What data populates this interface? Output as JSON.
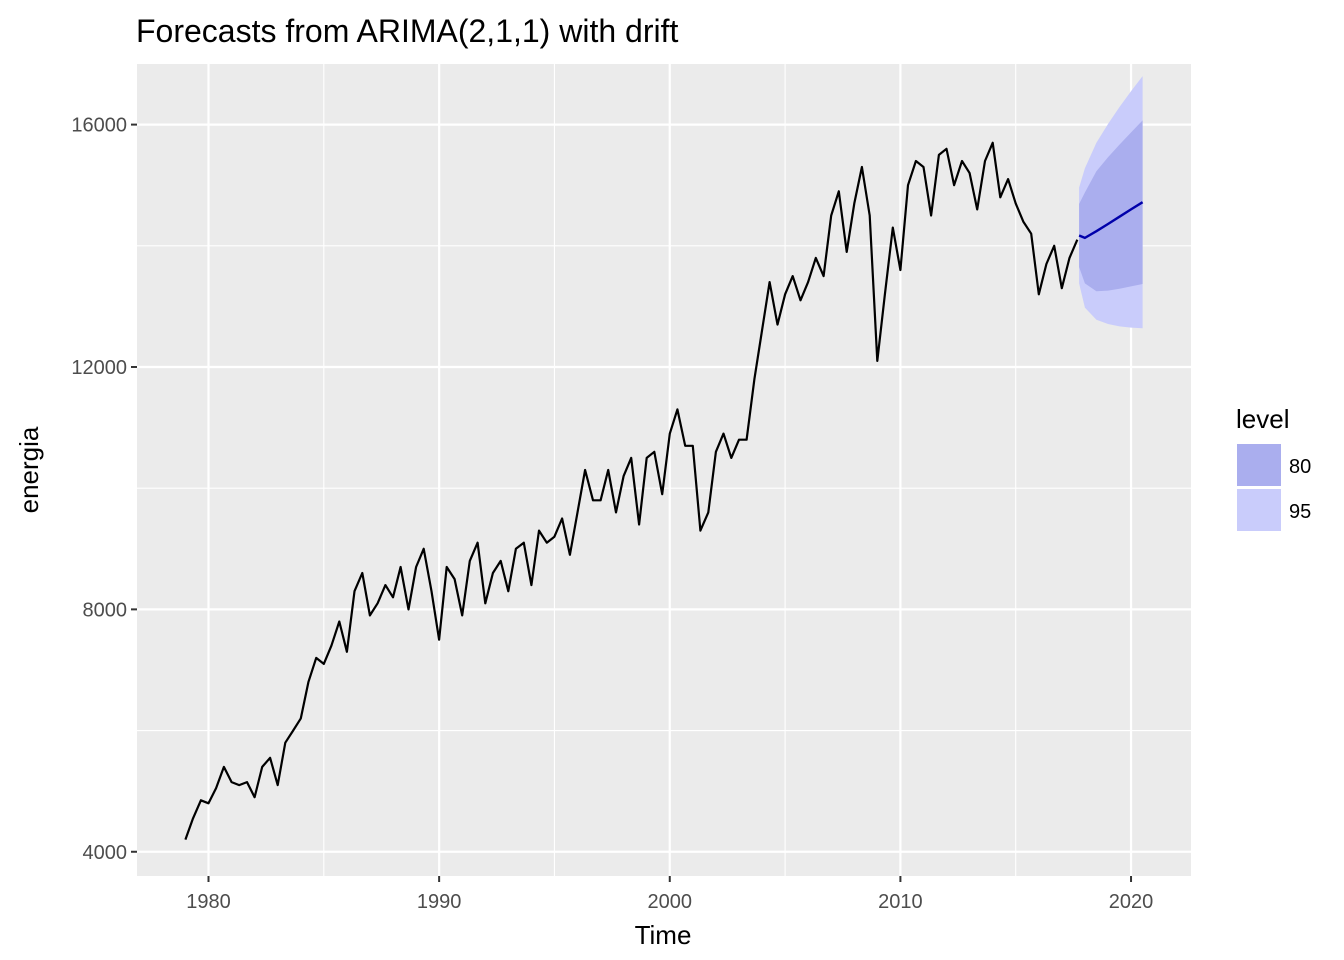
{
  "chart_data": {
    "type": "line",
    "title": "Forecasts from ARIMA(2,1,1) with drift",
    "xlabel": "Time",
    "ylabel": "energia",
    "xlim": [
      1976.9,
      2022.6
    ],
    "ylim": [
      3600,
      17000
    ],
    "x_ticks": [
      1980,
      1990,
      2000,
      2010,
      2020
    ],
    "y_ticks": [
      4000,
      8000,
      12000,
      16000
    ],
    "grid": true,
    "legend": {
      "title": "level",
      "position": "right",
      "entries": [
        {
          "label": "80",
          "color": "#aaaeee"
        },
        {
          "label": "95",
          "color": "#c9ccfb"
        }
      ]
    },
    "colors": {
      "panel": "#ebebeb",
      "grid": "#ffffff",
      "history": "#000000",
      "forecast": "#0000aa",
      "band80": "#aaaeee",
      "band95": "#c9ccfb"
    },
    "series": [
      {
        "x": [
          1979.0,
          1979.33,
          1979.67,
          1980.0,
          1980.33,
          1980.67,
          1981.0,
          1981.33,
          1981.67,
          1982.0,
          1982.33,
          1982.67,
          1983.0,
          1983.33,
          1983.67,
          1984.0,
          1984.33,
          1984.67,
          1985.0,
          1985.33,
          1985.67,
          1986.0,
          1986.33,
          1986.67,
          1987.0,
          1987.33,
          1987.67,
          1988.0,
          1988.33,
          1988.67,
          1989.0,
          1989.33,
          1989.67,
          1990.0,
          1990.33,
          1990.67,
          1991.0,
          1991.33,
          1991.67,
          1992.0,
          1992.33,
          1992.67,
          1993.0,
          1993.33,
          1993.67,
          1994.0,
          1994.33,
          1994.67,
          1995.0,
          1995.33,
          1995.67,
          1996.0,
          1996.33,
          1996.67,
          1997.0,
          1997.33,
          1997.67,
          1998.0,
          1998.33,
          1998.67,
          1999.0,
          1999.33,
          1999.67,
          2000.0,
          2000.33,
          2000.67,
          2001.0,
          2001.33,
          2001.67,
          2002.0,
          2002.33,
          2002.67,
          2003.0,
          2003.33,
          2003.67,
          2004.0,
          2004.33,
          2004.67,
          2005.0,
          2005.33,
          2005.67,
          2006.0,
          2006.33,
          2006.67,
          2007.0,
          2007.33,
          2007.67,
          2008.0,
          2008.33,
          2008.67,
          2009.0,
          2009.33,
          2009.67,
          2010.0,
          2010.33,
          2010.67,
          2011.0,
          2011.33,
          2011.67,
          2012.0,
          2012.33,
          2012.67,
          2013.0,
          2013.33,
          2013.67,
          2014.0,
          2014.33,
          2014.67,
          2015.0,
          2015.33,
          2015.67,
          2016.0,
          2016.33,
          2016.67,
          2017.0,
          2017.33,
          2017.67
        ],
        "values": [
          4200,
          4550,
          4850,
          4800,
          5050,
          5400,
          5150,
          5100,
          5150,
          4900,
          5400,
          5550,
          5100,
          5800,
          6000,
          6200,
          6800,
          7200,
          7100,
          7400,
          7800,
          7300,
          8300,
          8600,
          7900,
          8100,
          8400,
          8200,
          8700,
          8000,
          8700,
          9000,
          8300,
          7500,
          8700,
          8500,
          7900,
          8800,
          9100,
          8100,
          8600,
          8800,
          8300,
          9000,
          9100,
          8400,
          9300,
          9100,
          9200,
          9500,
          8900,
          9600,
          10300,
          9800,
          9800,
          10300,
          9600,
          10200,
          10500,
          9400,
          10500,
          10600,
          9900,
          10900,
          11300,
          10700,
          10700,
          9300,
          9600,
          10600,
          10900,
          10500,
          10800,
          10800,
          11800,
          12600,
          13400,
          12700,
          13200,
          13500,
          13100,
          13400,
          13800,
          13500,
          14500,
          14900,
          13900,
          14700,
          15300,
          14500,
          12100,
          13200,
          14300,
          13600,
          15000,
          15400,
          15300,
          14500,
          15500,
          15600,
          15000,
          15400,
          15200,
          14600,
          15400,
          15700,
          14800,
          15100,
          14700,
          14400,
          14200,
          13200,
          13700,
          14000,
          13300,
          13800,
          14100
        ]
      }
    ],
    "forecast": {
      "x": [
        2017.75,
        2018.0,
        2018.5,
        2019.0,
        2019.5,
        2020.0,
        2020.5
      ],
      "mean": [
        14170,
        14130,
        14240,
        14360,
        14480,
        14600,
        14720
      ],
      "lo80": [
        13650,
        13380,
        13250,
        13260,
        13290,
        13330,
        13370
      ],
      "hi80": [
        14690,
        14880,
        15230,
        15460,
        15670,
        15870,
        16070
      ],
      "lo95": [
        13380,
        12980,
        12780,
        12710,
        12670,
        12650,
        12640
      ],
      "hi95": [
        14960,
        15280,
        15700,
        16010,
        16290,
        16550,
        16800
      ]
    }
  }
}
